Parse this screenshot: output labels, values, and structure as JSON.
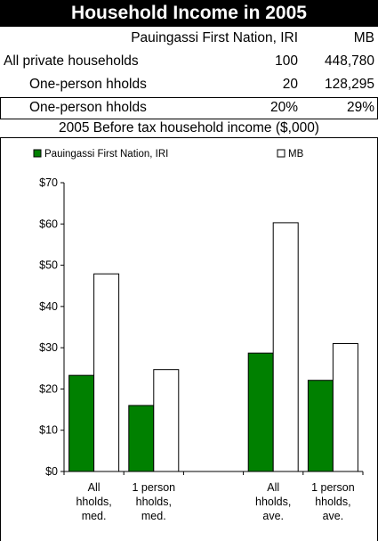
{
  "title": "Household Income in 2005",
  "table": {
    "header": {
      "label": "",
      "col1": "Pauingassi First Nation, IRI",
      "col2": "MB"
    },
    "rows": [
      {
        "label": "All private households",
        "col1": "100",
        "col2": "448,780"
      },
      {
        "label": "One-person hholds",
        "col1": "20",
        "col2": "128,295"
      },
      {
        "label": "One-person hholds",
        "col1": "20%",
        "col2": "29%"
      }
    ]
  },
  "chart_data": {
    "type": "bar",
    "title": "2005 Before tax household income ($,000)",
    "categories": [
      [
        "All",
        "hholds,",
        "med."
      ],
      [
        "1 person",
        "hholds,",
        "med."
      ],
      [],
      [
        "All",
        "hholds,",
        "ave."
      ],
      [
        "1 person",
        "hholds,",
        "ave."
      ]
    ],
    "series": [
      {
        "name": "Pauingassi First Nation, IRI",
        "color": "#008000",
        "values": [
          23.3,
          16.0,
          null,
          28.7,
          22.1
        ]
      },
      {
        "name": "MB",
        "color": "#ffffff",
        "values": [
          47.9,
          24.7,
          null,
          60.3,
          31.0
        ]
      }
    ],
    "ylim": [
      0,
      70
    ],
    "yticks": [
      0,
      10,
      20,
      30,
      40,
      50,
      60,
      70
    ],
    "ytick_labels": [
      "$0",
      "$10",
      "$20",
      "$30",
      "$40",
      "$50",
      "$60",
      "$70"
    ],
    "xlabel": "",
    "ylabel": "",
    "grid": false,
    "legend": "top"
  }
}
